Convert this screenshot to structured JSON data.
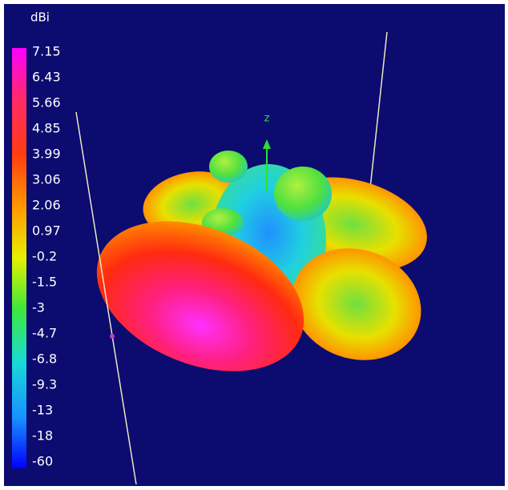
{
  "colorbar": {
    "unit": "dBi",
    "labels": [
      "7.15",
      "6.43",
      "5.66",
      "4.85",
      "3.99",
      "3.06",
      "2.06",
      "0.97",
      "-0.2",
      "-1.5",
      "-3",
      "-4.7",
      "-6.8",
      "-9.3",
      "-13",
      "-18",
      "-60"
    ]
  },
  "axis_label": "z"
}
